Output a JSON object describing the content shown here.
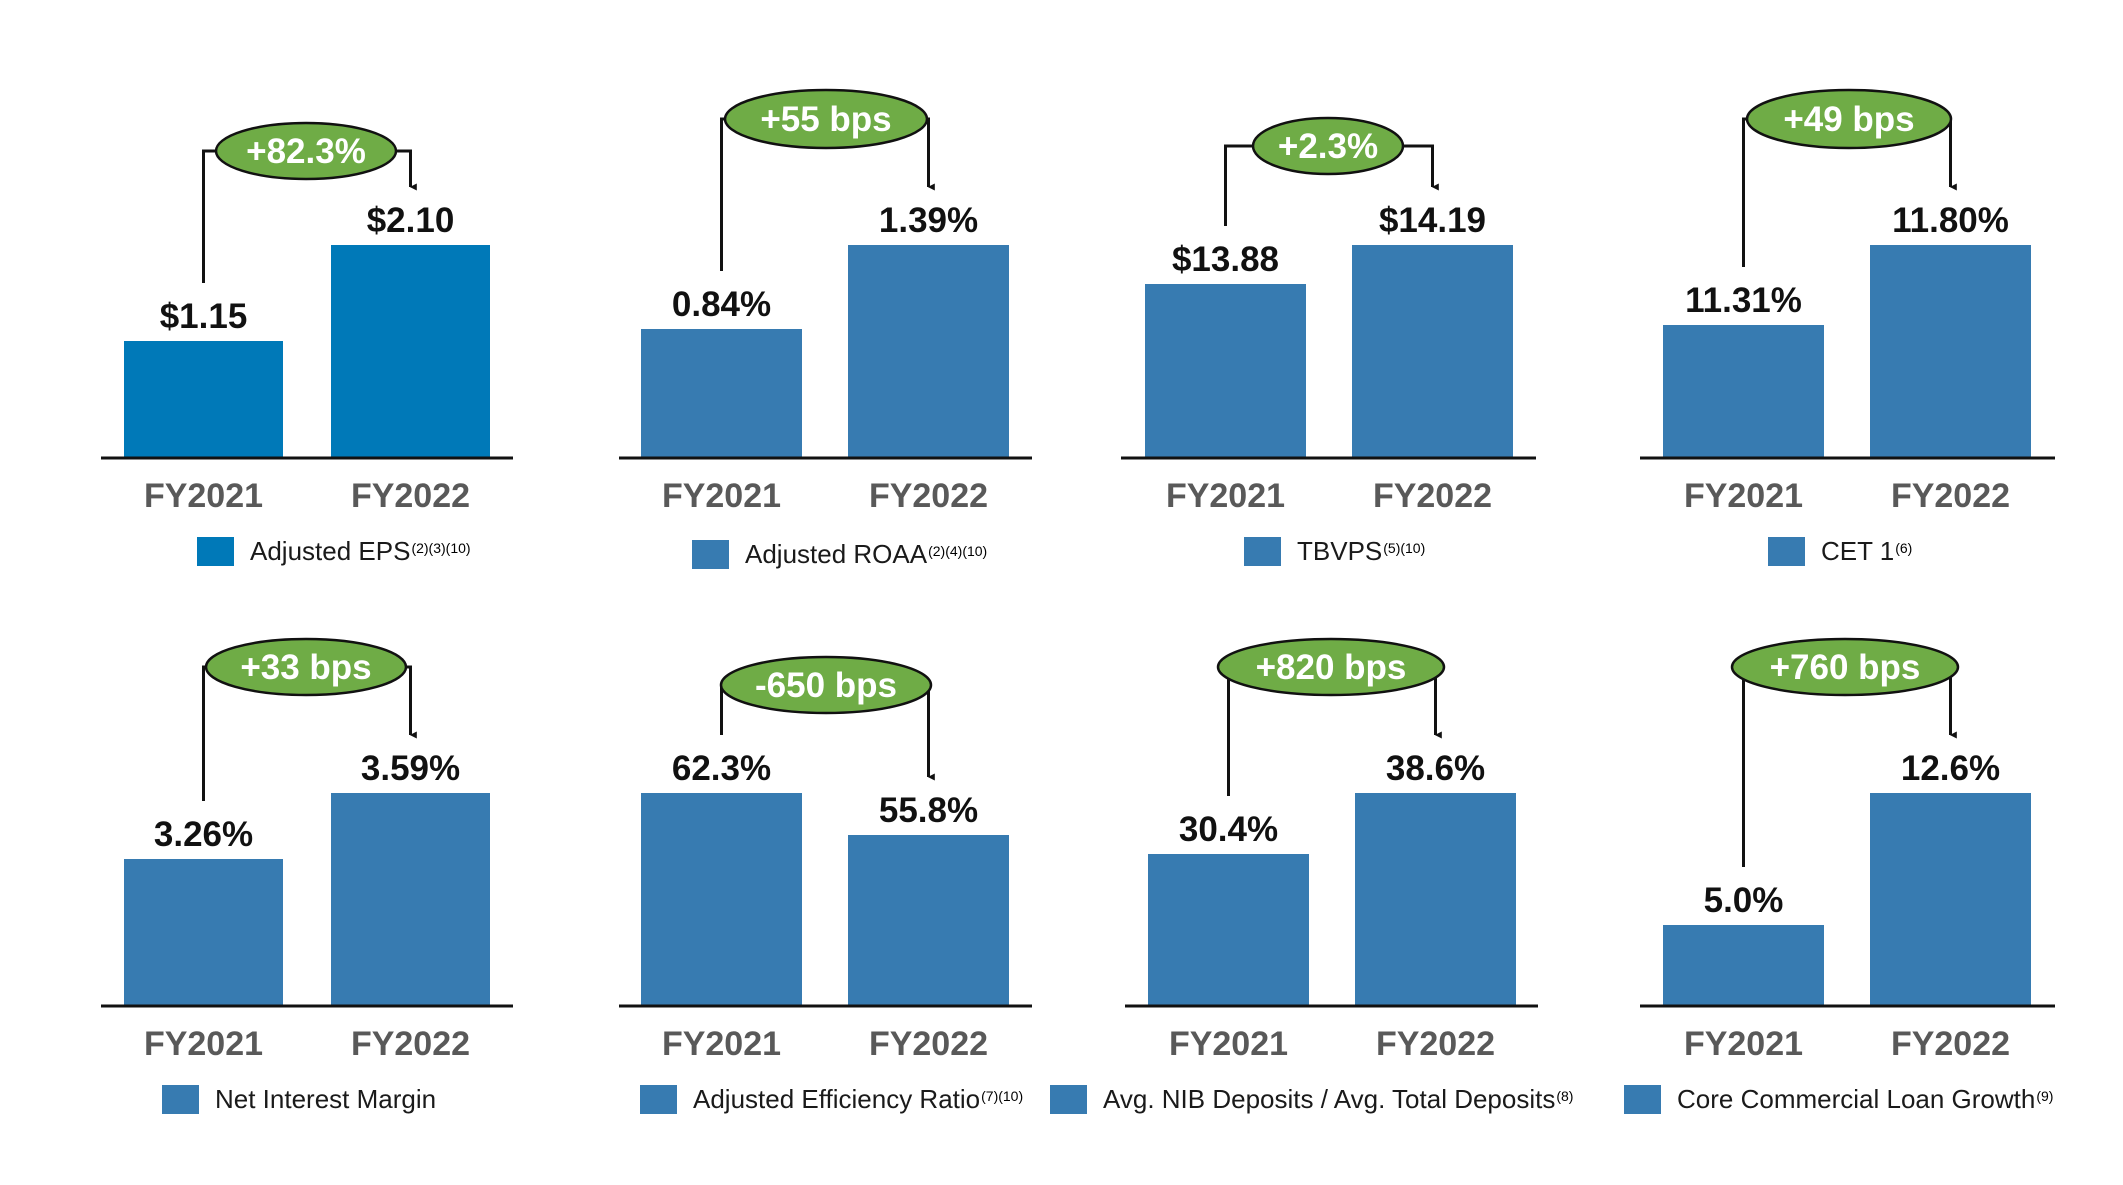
{
  "colors": {
    "bar_primary": "#0079b8",
    "bar": "#377bb1",
    "badge_fill": "#6fac46",
    "badge_stroke": "#111111",
    "axis": "#111111",
    "value_text": "#111111",
    "tick_text": "#595959",
    "badge_text": "#ffffff"
  },
  "chart_data": [
    {
      "id": "eps",
      "type": "bar",
      "categories": [
        "FY2021",
        "FY2022"
      ],
      "values": [
        1.15,
        2.1
      ],
      "value_labels": [
        "$1.15",
        "$2.10"
      ],
      "change_label": "+82.3%",
      "legend": {
        "label": "Adjusted EPS",
        "superscript": "(2)(3)(10)"
      }
    },
    {
      "id": "roaa",
      "type": "bar",
      "categories": [
        "FY2021",
        "FY2022"
      ],
      "values": [
        0.84,
        1.39
      ],
      "value_labels": [
        "0.84%",
        "1.39%"
      ],
      "change_label": "+55 bps",
      "legend": {
        "label": "Adjusted ROAA",
        "superscript": "(2)(4)(10)"
      }
    },
    {
      "id": "tbvps",
      "type": "bar",
      "categories": [
        "FY2021",
        "FY2022"
      ],
      "values": [
        13.88,
        14.19
      ],
      "value_labels": [
        "$13.88",
        "$14.19"
      ],
      "change_label": "+2.3%",
      "legend": {
        "label": "TBVPS",
        "superscript": "(5)(10)"
      }
    },
    {
      "id": "cet1",
      "type": "bar",
      "categories": [
        "FY2021",
        "FY2022"
      ],
      "values": [
        11.31,
        11.8
      ],
      "value_labels": [
        "11.31%",
        "11.80%"
      ],
      "change_label": "+49 bps",
      "legend": {
        "label": "CET 1",
        "superscript": "(6)"
      }
    },
    {
      "id": "nim",
      "type": "bar",
      "categories": [
        "FY2021",
        "FY2022"
      ],
      "values": [
        3.26,
        3.59
      ],
      "value_labels": [
        "3.26%",
        "3.59%"
      ],
      "change_label": "+33 bps",
      "legend": {
        "label": "Net Interest Margin",
        "superscript": ""
      }
    },
    {
      "id": "eff",
      "type": "bar",
      "categories": [
        "FY2021",
        "FY2022"
      ],
      "values": [
        62.3,
        55.8
      ],
      "value_labels": [
        "62.3%",
        "55.8%"
      ],
      "change_label": "-650 bps",
      "legend": {
        "label": "Adjusted Efficiency Ratio",
        "superscript": "(7)(10)"
      }
    },
    {
      "id": "nib",
      "type": "bar",
      "categories": [
        "FY2021",
        "FY2022"
      ],
      "values": [
        30.4,
        38.6
      ],
      "value_labels": [
        "30.4%",
        "38.6%"
      ],
      "change_label": "+820 bps",
      "legend": {
        "label": "Avg. NIB Deposits / Avg. Total Deposits",
        "superscript": "(8)"
      }
    },
    {
      "id": "loan",
      "type": "bar",
      "categories": [
        "FY2021",
        "FY2022"
      ],
      "values": [
        5.0,
        12.6
      ],
      "value_labels": [
        "5.0%",
        "12.6%"
      ],
      "change_label": "+760 bps",
      "legend": {
        "label": "Core Commercial Loan Growth",
        "superscript": "(9)"
      }
    }
  ]
}
